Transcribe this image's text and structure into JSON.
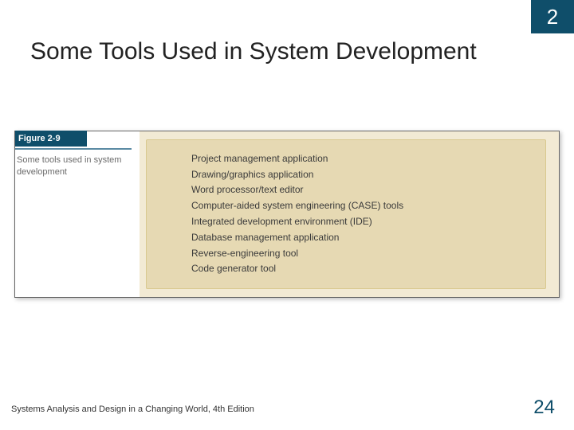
{
  "colors": {
    "badge_bg": "#0f4e6a",
    "badge_text": "#ffffff",
    "title_text": "#222222",
    "figure_tab_bg": "#0f4e6a",
    "figure_tab_text": "#ffffff",
    "tab_underline": "#5a8aa3",
    "caption_text": "#6b6b6b",
    "box_outer_bg": "#f2ead4",
    "box_inner_bg": "#e6d9b3",
    "box_border": "#d9c98f",
    "tool_text": "#3a3a3a",
    "footer_text": "#333333",
    "page_num": "#0f4e6a"
  },
  "chapter_number": "2",
  "title": "Some Tools Used in System Development",
  "figure": {
    "label": "Figure 2-9",
    "caption": "Some tools used in system development",
    "tools": [
      "Project management application",
      "Drawing/graphics application",
      "Word processor/text editor",
      "Computer-aided system engineering (CASE) tools",
      "Integrated development environment (IDE)",
      "Database management application",
      "Reverse-engineering tool",
      "Code generator tool"
    ]
  },
  "footer": {
    "book": "Systems Analysis and Design in a Changing World, 4th Edition",
    "page": "24"
  }
}
